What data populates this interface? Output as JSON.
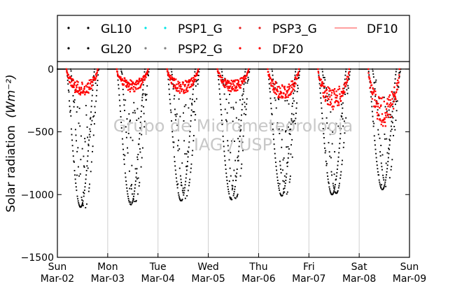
{
  "chart_data": {
    "type": "scatter",
    "ylabel": "Solar radiation",
    "ylabel_unit": "(Wm⁻²)",
    "ylim": [
      -1500,
      60
    ],
    "yticks": [
      0,
      -500,
      -1000,
      -1500
    ],
    "ytick_labels": [
      "0",
      "−500",
      "−1000",
      "−1500"
    ],
    "x_ticks": [
      {
        "day": "Sun",
        "date": "Mar-02"
      },
      {
        "day": "Mon",
        "date": "Mar-03"
      },
      {
        "day": "Tue",
        "date": "Mar-04"
      },
      {
        "day": "Wed",
        "date": "Mar-05"
      },
      {
        "day": "Thu",
        "date": "Mar-06"
      },
      {
        "day": "Fri",
        "date": "Mar-07"
      },
      {
        "day": "Sat",
        "date": "Mar-08"
      },
      {
        "day": "Sun",
        "date": "Mar-09"
      }
    ],
    "legend_placement": "top",
    "grid": "vertical",
    "series": [
      {
        "name": "GL10",
        "color": "#000000",
        "marker": "dot",
        "daily_min": [
          -1100,
          -1080,
          -1050,
          -1040,
          -1010,
          -1000,
          -960
        ]
      },
      {
        "name": "GL20",
        "color": "#000000",
        "marker": "dot",
        "daily_min": [
          -1110,
          -1060,
          -1030,
          -1030,
          -1000,
          -990,
          -940
        ]
      },
      {
        "name": "PSP1_G",
        "color": "#00e5e5",
        "marker": "dot",
        "daily_min": []
      },
      {
        "name": "PSP2_G",
        "color": "#808080",
        "marker": "dot",
        "daily_min": []
      },
      {
        "name": "PSP3_G",
        "color": "#e52222",
        "marker": "dot",
        "daily_min": []
      },
      {
        "name": "DF20",
        "color": "#ff0000",
        "marker": "dot",
        "daily_min": [
          -190,
          -160,
          -170,
          -160,
          -220,
          -280,
          -400
        ]
      },
      {
        "name": "DF10",
        "color": "#ff6666",
        "marker": "line",
        "daily_min": []
      }
    ]
  },
  "watermark": {
    "line1": "Grupo de Micrometeorologia",
    "line2": "IAG / USP"
  }
}
